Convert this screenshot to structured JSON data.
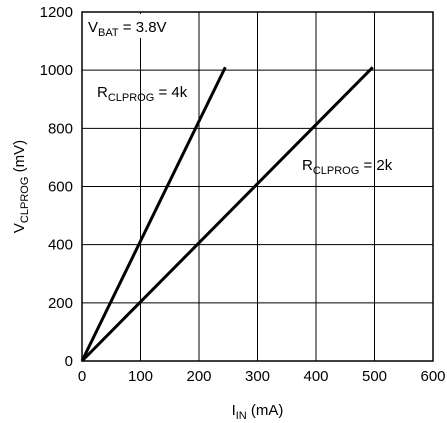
{
  "chart_data": {
    "type": "line",
    "xlabel": {
      "main": "I",
      "sub": "IN",
      "unit": " (mA)"
    },
    "ylabel": {
      "main": "V",
      "sub": "CLPROG",
      "unit": " (mV)"
    },
    "xlim": [
      0,
      600
    ],
    "ylim": [
      0,
      1200
    ],
    "x_ticks": [
      0,
      100,
      200,
      300,
      400,
      500,
      600
    ],
    "y_ticks": [
      0,
      200,
      400,
      600,
      800,
      1000,
      1200
    ],
    "grid": true,
    "series": [
      {
        "name_main": "R",
        "name_sub": "CLPROG",
        "name_rest": " = 4k",
        "x": [
          0,
          245
        ],
        "y": [
          0,
          1010
        ]
      },
      {
        "name_main": "R",
        "name_sub": "CLPROG",
        "name_rest": " = 2k",
        "x": [
          0,
          497
        ],
        "y": [
          0,
          1010
        ]
      }
    ],
    "annotation": {
      "main": "V",
      "sub": "BAT",
      "rest": " = 3.8V"
    }
  }
}
